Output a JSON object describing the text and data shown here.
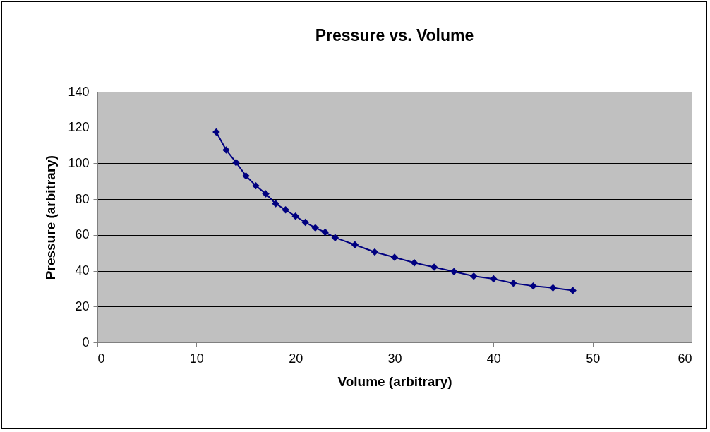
{
  "chart_data": {
    "type": "line",
    "title": "Pressure vs. Volume",
    "xlabel": "Volume (arbitrary)",
    "ylabel": "Pressure (arbitrary)",
    "x": [
      12,
      13,
      14,
      15,
      16,
      17,
      18,
      19,
      20,
      21,
      22,
      23,
      24,
      26,
      28,
      30,
      32,
      34,
      36,
      38,
      40,
      42,
      44,
      46,
      48
    ],
    "series": [
      {
        "color": "#000080",
        "values": [
          117.5,
          107.5,
          100.5,
          93,
          87.5,
          83,
          77.5,
          74,
          70.5,
          67,
          64,
          61.5,
          58.5,
          54.5,
          50.5,
          47.5,
          44.5,
          42,
          39.5,
          37,
          35.5,
          33,
          31.5,
          30.5,
          29
        ]
      }
    ],
    "xlim": [
      0,
      60
    ],
    "xticks": [
      0,
      10,
      20,
      30,
      40,
      50,
      60
    ],
    "ylim": [
      0,
      140
    ],
    "yticks": [
      0,
      20,
      40,
      60,
      80,
      100,
      120,
      140
    ],
    "grid": "y",
    "marker": "diamond",
    "line_style": "solid",
    "legend": false
  }
}
